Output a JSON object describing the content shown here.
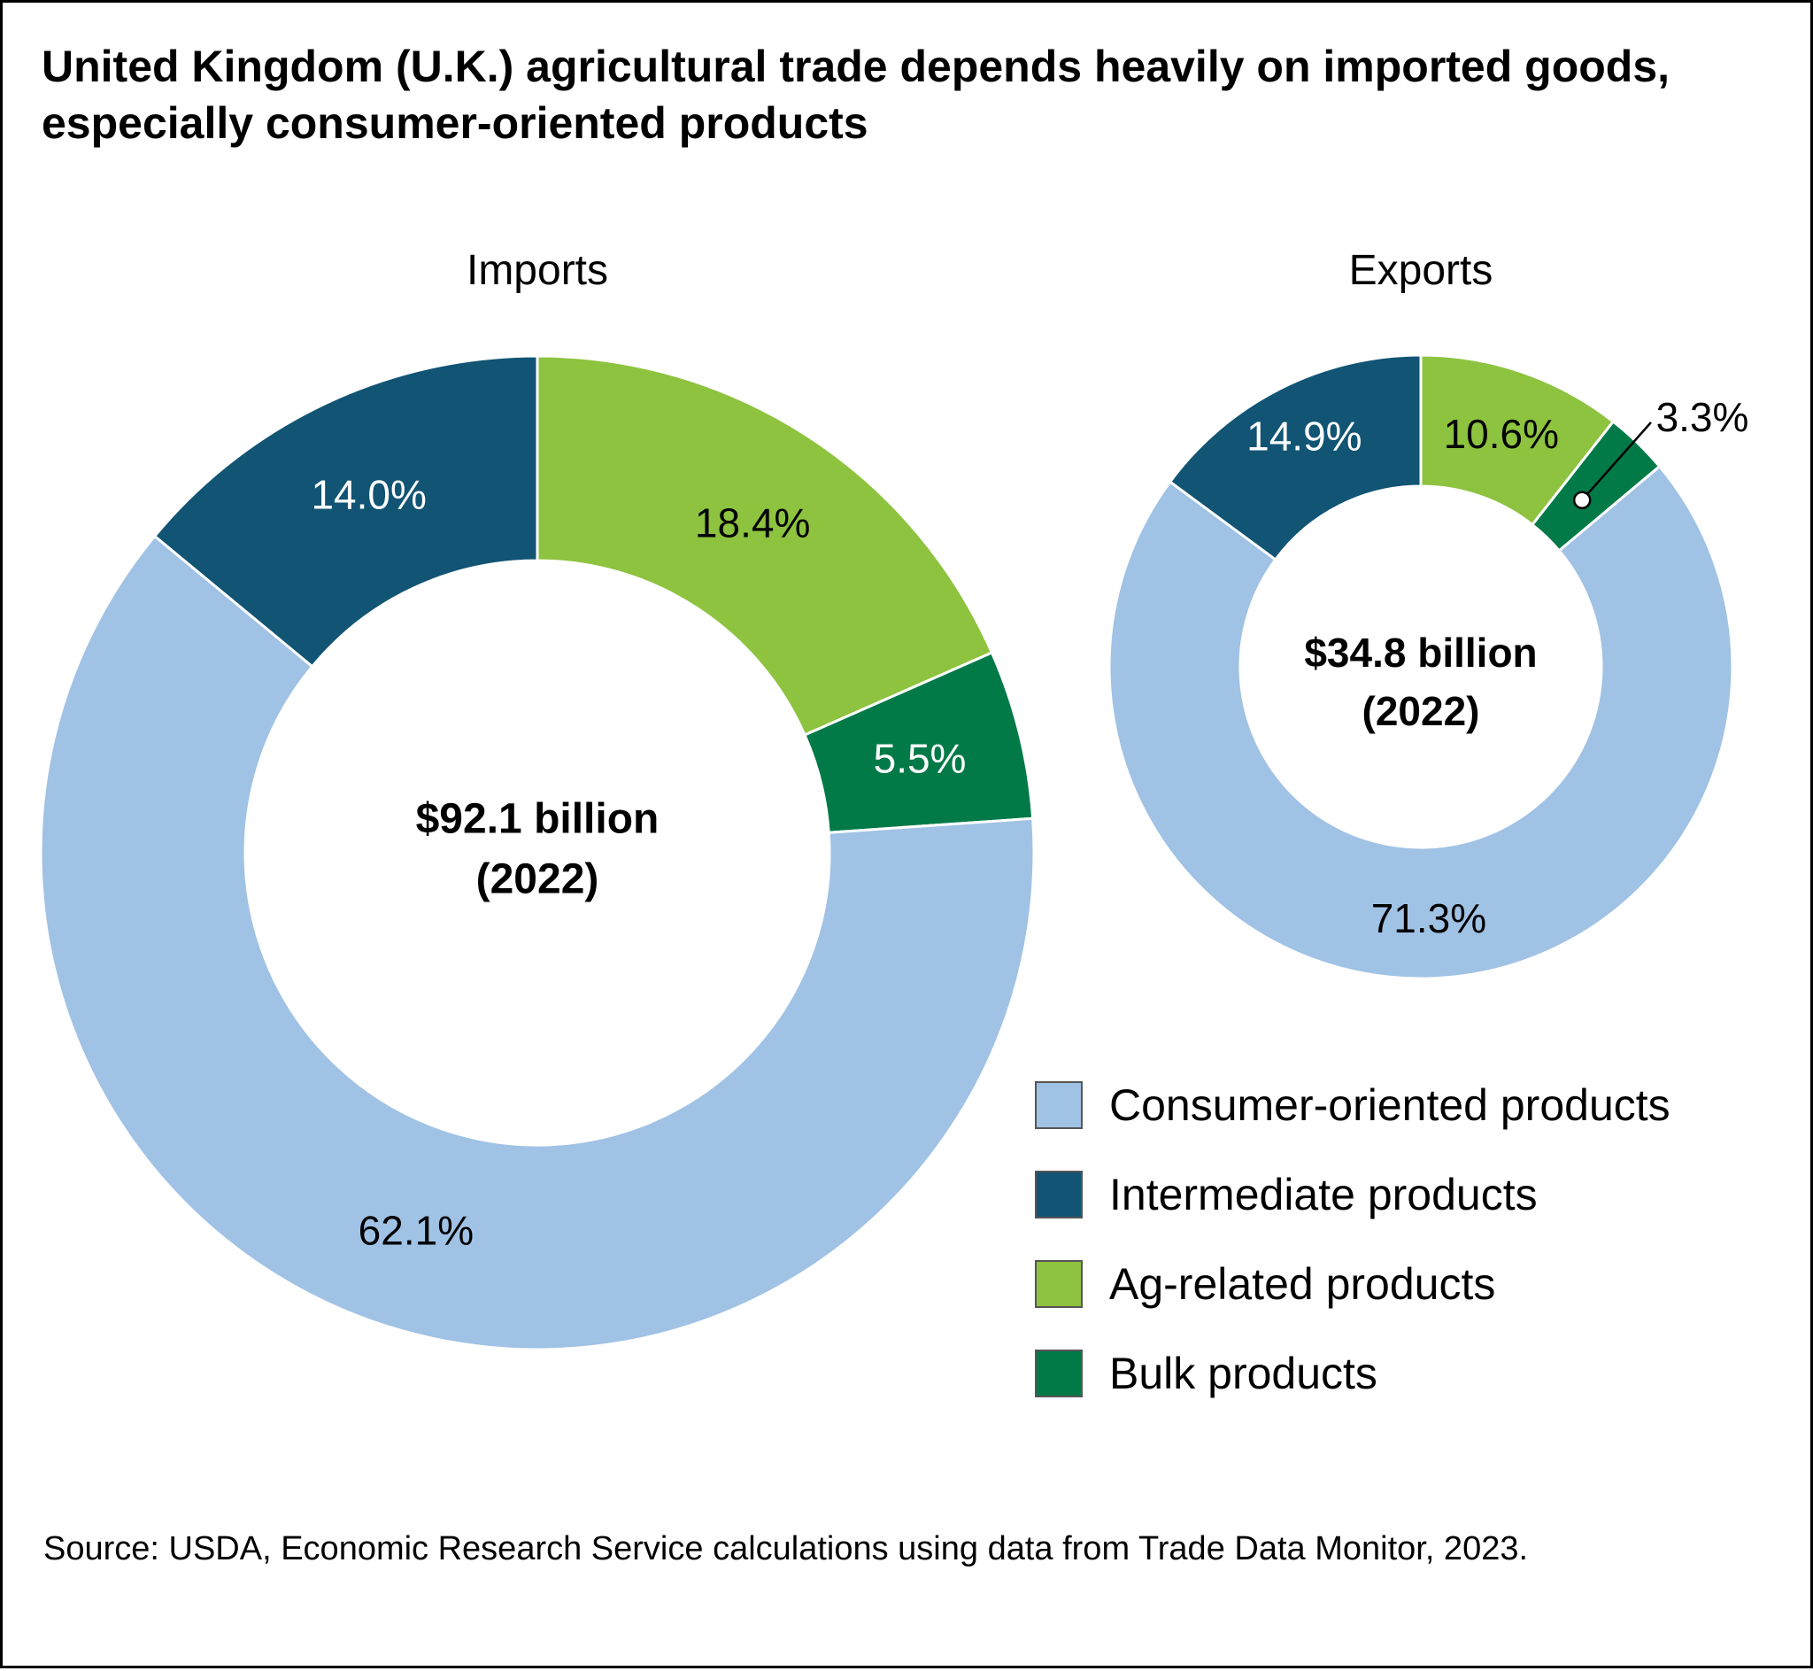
{
  "title": "United Kingdom (U.K.) agricultural trade depends heavily on imported goods, especially consumer-oriented products",
  "source": "Source: USDA, Economic Research Service calculations using data from Trade Data Monitor, 2023.",
  "colors": {
    "consumer": "#a0c2e5",
    "intermediate": "#115474",
    "ag_related": "#8dc33f",
    "bulk": "#027a48"
  },
  "legend": [
    {
      "label": "Consumer-oriented products",
      "color": "#a0c2e5"
    },
    {
      "label": "Intermediate products",
      "color": "#115474"
    },
    {
      "label": "Ag-related products",
      "color": "#8dc33f"
    },
    {
      "label": "Bulk products",
      "color": "#027a48"
    }
  ],
  "chart_data": [
    {
      "type": "pie",
      "title": "Imports",
      "center_label": [
        "$92.1 billion",
        "(2022)"
      ],
      "categories": [
        "Ag-related products",
        "Bulk products",
        "Consumer-oriented products",
        "Intermediate products"
      ],
      "values": [
        18.4,
        5.5,
        62.1,
        14.0
      ],
      "labels": [
        "18.4%",
        "5.5%",
        "62.1%",
        "14.0%"
      ],
      "colors": [
        "#8dc33f",
        "#027a48",
        "#a0c2e5",
        "#115474"
      ],
      "label_colors": [
        "#000000",
        "#ffffff",
        "#000000",
        "#ffffff"
      ]
    },
    {
      "type": "pie",
      "title": "Exports",
      "center_label": [
        "$34.8 billion",
        "(2022)"
      ],
      "categories": [
        "Ag-related products",
        "Bulk products",
        "Consumer-oriented products",
        "Intermediate products"
      ],
      "values": [
        10.6,
        3.3,
        71.3,
        14.9
      ],
      "labels": [
        "10.6%",
        "3.3%",
        "71.3%",
        "14.9%"
      ],
      "colors": [
        "#8dc33f",
        "#027a48",
        "#a0c2e5",
        "#115474"
      ],
      "label_colors": [
        "#000000",
        "#000000",
        "#000000",
        "#ffffff"
      ]
    }
  ]
}
